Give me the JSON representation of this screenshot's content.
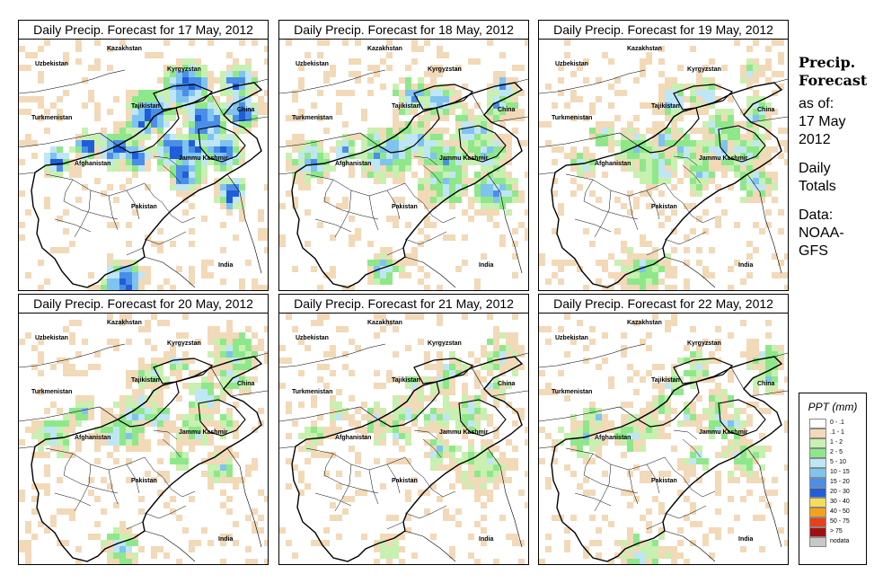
{
  "panels": [
    {
      "title": "Daily Precip. Forecast for  17 May, 2012",
      "intensity": 1.0
    },
    {
      "title": "Daily Precip. Forecast for  18 May, 2012",
      "intensity": 0.7
    },
    {
      "title": "Daily Precip. Forecast for  19 May, 2012",
      "intensity": 0.6
    },
    {
      "title": "Daily Precip. Forecast for  20 May, 2012",
      "intensity": 0.55
    },
    {
      "title": "Daily Precip. Forecast for  21 May, 2012",
      "intensity": 0.45
    },
    {
      "title": "Daily Precip. Forecast for  22 May, 2012",
      "intensity": 0.5
    }
  ],
  "map_labels": {
    "kazakhstan": "Kazakhstan",
    "uzbekistan": "Uzbekistan",
    "kyrgyzstan": "Kyrgyzstan",
    "tajikistan": "Tajikistan",
    "turkmenistan": "Turkmenistan",
    "china": "China",
    "afghanistan": "Afghanistan",
    "jammu_kashmir": "Jammu Kashmir",
    "pakistan": "Pakistan",
    "india": "India"
  },
  "sidebar": {
    "title_line1": "Precip.",
    "title_line2": "Forecast",
    "asof_line1": "as of:",
    "asof_line2": "17 May",
    "asof_line3": "2012",
    "daily_line1": "Daily",
    "daily_line2": "Totals",
    "data_line1": "Data:",
    "data_line2": "NOAA-",
    "data_line3": "GFS"
  },
  "legend": {
    "title": "PPT (mm)",
    "entries": [
      {
        "label": "0 - .1",
        "color": "#ffffff"
      },
      {
        "label": ".1 - 1",
        "color": "#f2d9b8"
      },
      {
        "label": "1 - 2",
        "color": "#c8f0b0"
      },
      {
        "label": "2 - 5",
        "color": "#8ee88a"
      },
      {
        "label": "5 - 10",
        "color": "#bfe6f5"
      },
      {
        "label": "10 - 15",
        "color": "#7fc3f0"
      },
      {
        "label": "15 - 20",
        "color": "#4a8ee8"
      },
      {
        "label": "20 - 30",
        "color": "#1f5ed8"
      },
      {
        "label": "30 - 40",
        "color": "#f5dc5c"
      },
      {
        "label": "40 - 50",
        "color": "#f5a21a"
      },
      {
        "label": "50 - 75",
        "color": "#e8401a"
      },
      {
        "label": "> 75",
        "color": "#a01010"
      },
      {
        "label": "nodata",
        "color": "#c8c8c8"
      }
    ]
  }
}
